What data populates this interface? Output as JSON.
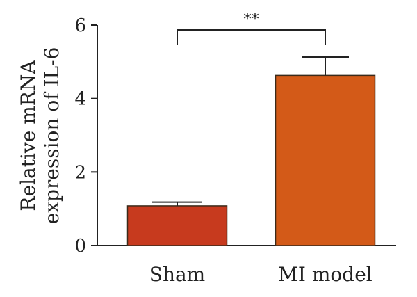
{
  "chart_data": {
    "type": "bar",
    "categories": [
      "Sham",
      "MI model"
    ],
    "values": [
      1.08,
      4.63
    ],
    "errors": [
      0.1,
      0.5
    ],
    "colors": [
      "#c73a1e",
      "#d35a18"
    ],
    "ylabel_lines": [
      "Relative mRNA",
      "expression of IL-6"
    ],
    "ylim": [
      0,
      6
    ],
    "yticks": [
      0,
      2,
      4,
      6
    ],
    "yticks_labels": [
      "0",
      "2",
      "4",
      "6"
    ],
    "significance": {
      "label": "**",
      "between": [
        0,
        1
      ]
    },
    "grid": false
  }
}
